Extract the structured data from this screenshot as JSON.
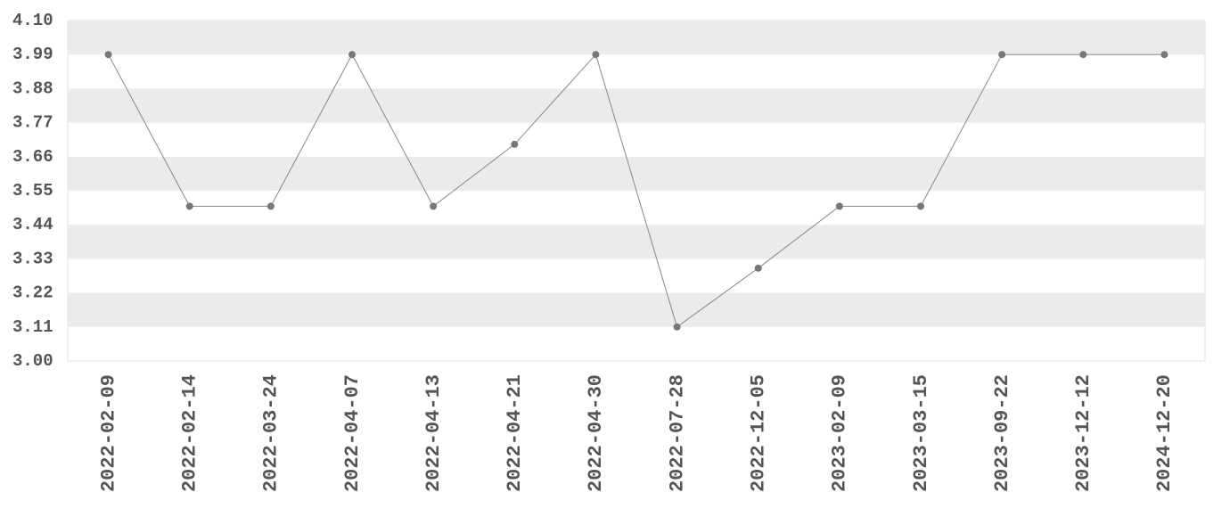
{
  "chart_data": {
    "type": "line",
    "categories": [
      "2022-02-09",
      "2022-02-14",
      "2022-03-24",
      "2022-04-07",
      "2022-04-13",
      "2022-04-21",
      "2022-04-30",
      "2022-07-28",
      "2022-12-05",
      "2023-02-09",
      "2023-03-15",
      "2023-09-22",
      "2023-12-12",
      "2024-12-20"
    ],
    "values": [
      3.99,
      3.5,
      3.5,
      3.99,
      3.5,
      3.7,
      3.99,
      3.11,
      3.3,
      3.5,
      3.5,
      3.99,
      3.99,
      3.99
    ],
    "color": "#777777",
    "ylim": [
      3.0,
      4.1
    ],
    "yticks": [
      {
        "value": 3,
        "label": "3.00"
      },
      3.11,
      3.22,
      3.33,
      3.44,
      3.55,
      3.66,
      3.77,
      3.88,
      3.99,
      {
        "value": 4.1,
        "label": "4.10"
      }
    ],
    "grid": "bands"
  }
}
